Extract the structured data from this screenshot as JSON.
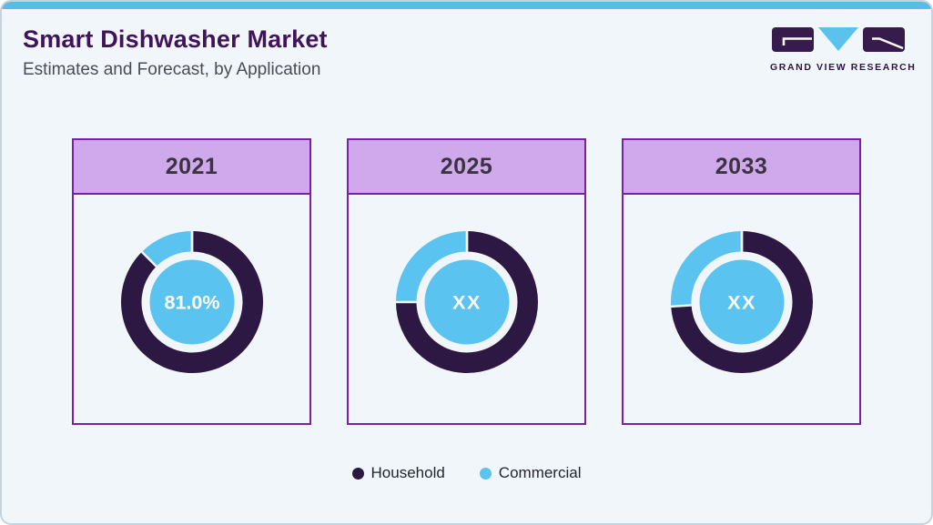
{
  "page": {
    "bg": "#f1f6fa",
    "frame_border": "#c6d3dd",
    "top_bar_color": "#58bce9"
  },
  "header": {
    "title": "Smart Dishwasher Market",
    "subtitle": "Estimates and Forecast, by Application",
    "title_color": "#41135b",
    "subtitle_color": "#4c4c54"
  },
  "logo": {
    "text": "GRAND VIEW RESEARCH",
    "block_color": "#371b4d",
    "triangle_color": "#5bc2ee",
    "text_color": "#2c1445"
  },
  "cards": {
    "border_color": "#7b1fa6",
    "header_bg": "#cfa9ec",
    "year_text_color": "#3a3440"
  },
  "legend": {
    "items": [
      {
        "label": "Household",
        "color": "#2d1843"
      },
      {
        "label": "Commercial",
        "color": "#5ac3ef"
      }
    ],
    "text_color": "#24242c"
  },
  "chart_data": {
    "type": "pie",
    "subtype": "donut",
    "title": "Smart Dishwasher Market Estimates and Forecast, by Application",
    "legend_position": "bottom",
    "series_colors": {
      "Household": "#2d1843",
      "Commercial": "#5ac3ef"
    },
    "center_circle_color": "#5ac3ef",
    "center_label_color": "#ffffff",
    "separator_color": "#f1f6fa",
    "charts": [
      {
        "year": "2021",
        "center_label": "81.0%",
        "slices": [
          {
            "name": "Household",
            "value_pct": 81.0,
            "visual_pct": 87.5
          },
          {
            "name": "Commercial",
            "value_pct": 19.0,
            "visual_pct": 12.5
          }
        ]
      },
      {
        "year": "2025",
        "center_label": "XX",
        "slices": [
          {
            "name": "Household",
            "value_pct": null,
            "visual_pct": 75
          },
          {
            "name": "Commercial",
            "value_pct": null,
            "visual_pct": 25
          }
        ]
      },
      {
        "year": "2033",
        "center_label": "XX",
        "slices": [
          {
            "name": "Household",
            "value_pct": null,
            "visual_pct": 74
          },
          {
            "name": "Commercial",
            "value_pct": null,
            "visual_pct": 26
          }
        ]
      }
    ]
  }
}
